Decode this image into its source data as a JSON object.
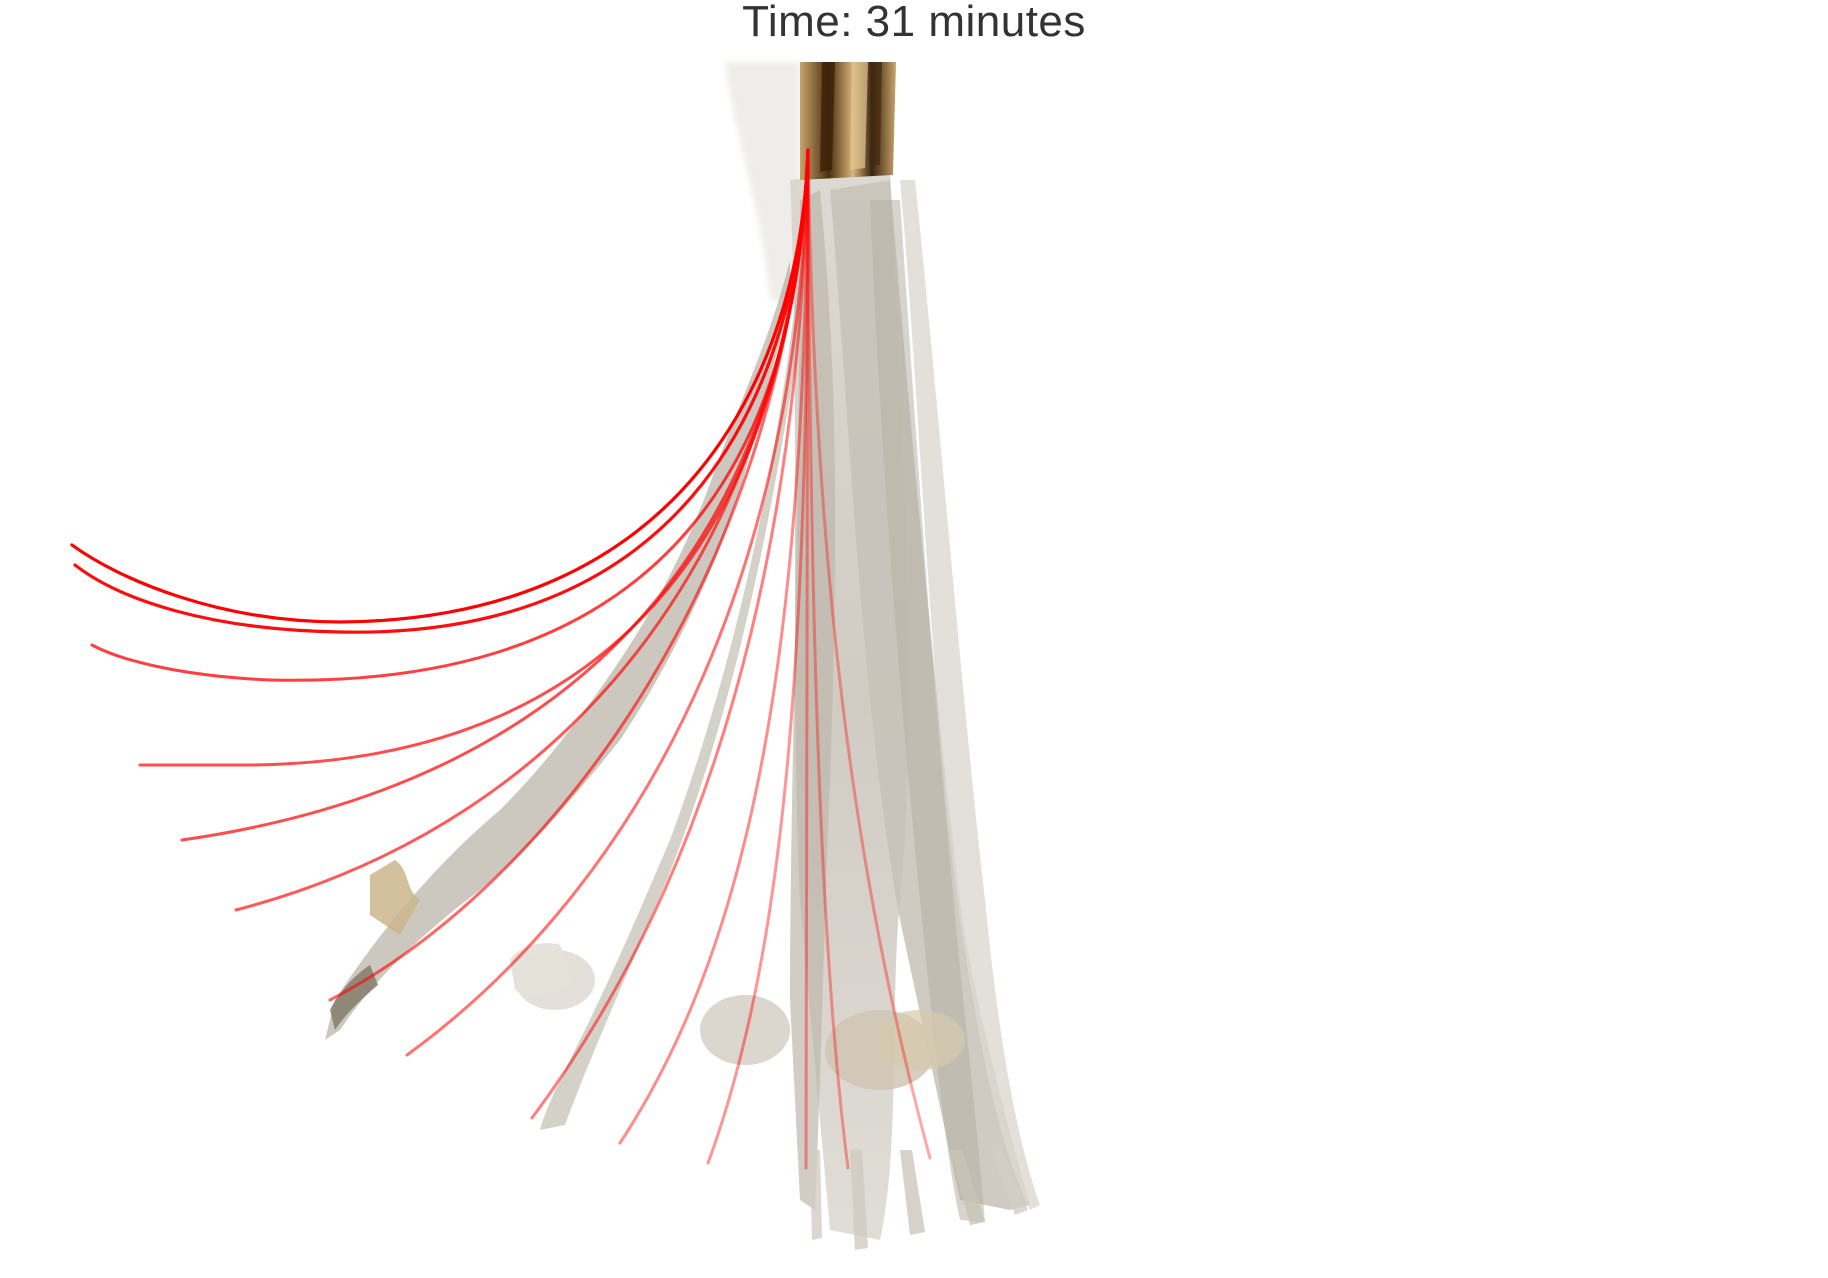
{
  "title": "Time: 31 minutes",
  "colors": {
    "background": "#ffffff",
    "title_text": "#333333",
    "trajectory": "#ff0000",
    "strand_light": "#d6d3cc",
    "strand_mid": "#bdb8ae",
    "tip_brown": "#5a3a18",
    "tip_amber": "#c8a060"
  },
  "icons": {
    "frame": "filament-bundle-image",
    "overlay": "red-trajectory-curves"
  }
}
